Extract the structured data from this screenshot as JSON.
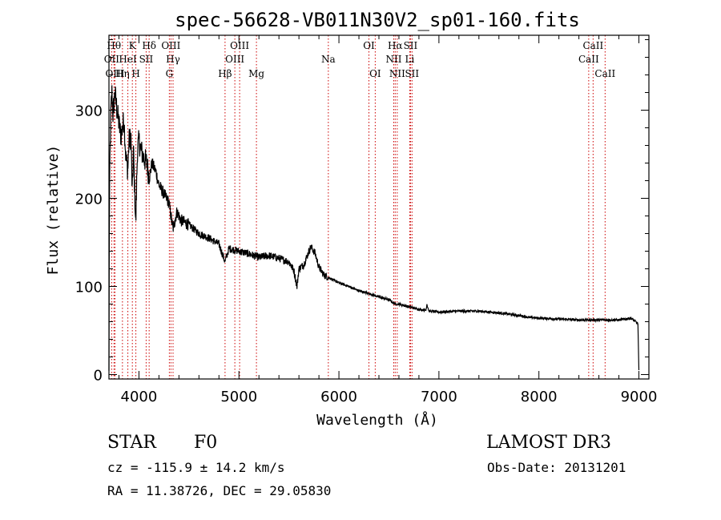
{
  "chart_data": {
    "type": "line",
    "title": "spec-56628-VB011N30V2_sp01-160.fits",
    "xlabel": "Wavelength (Å)",
    "ylabel": "Flux (relative)",
    "xlim": [
      3700,
      9100
    ],
    "ylim": [
      -5,
      385
    ],
    "xticks": [
      4000,
      5000,
      6000,
      7000,
      8000,
      9000
    ],
    "yticks": [
      0,
      100,
      200,
      300
    ],
    "anchors": [
      [
        3700,
        0
      ],
      [
        3703,
        150
      ],
      [
        3710,
        245
      ],
      [
        3720,
        300
      ],
      [
        3730,
        320
      ],
      [
        3740,
        295
      ],
      [
        3760,
        320
      ],
      [
        3780,
        300
      ],
      [
        3800,
        285
      ],
      [
        3820,
        270
      ],
      [
        3850,
        290
      ],
      [
        3870,
        245
      ],
      [
        3889,
        232
      ],
      [
        3900,
        265
      ],
      [
        3920,
        270
      ],
      [
        3933,
        205
      ],
      [
        3945,
        255
      ],
      [
        3968,
        170
      ],
      [
        3985,
        255
      ],
      [
        4000,
        265
      ],
      [
        4020,
        255
      ],
      [
        4050,
        245
      ],
      [
        4080,
        240
      ],
      [
        4102,
        222
      ],
      [
        4130,
        240
      ],
      [
        4170,
        230
      ],
      [
        4200,
        215
      ],
      [
        4250,
        205
      ],
      [
        4300,
        195
      ],
      [
        4340,
        165
      ],
      [
        4380,
        185
      ],
      [
        4420,
        175
      ],
      [
        4500,
        170
      ],
      [
        4600,
        160
      ],
      [
        4700,
        155
      ],
      [
        4800,
        148
      ],
      [
        4861,
        128
      ],
      [
        4900,
        143
      ],
      [
        5000,
        140
      ],
      [
        5100,
        137
      ],
      [
        5200,
        133
      ],
      [
        5300,
        135
      ],
      [
        5400,
        132
      ],
      [
        5500,
        128
      ],
      [
        5550,
        118
      ],
      [
        5580,
        100
      ],
      [
        5600,
        120
      ],
      [
        5650,
        125
      ],
      [
        5700,
        140
      ],
      [
        5720,
        145
      ],
      [
        5760,
        138
      ],
      [
        5800,
        122
      ],
      [
        5850,
        113
      ],
      [
        5900,
        110
      ],
      [
        6000,
        104
      ],
      [
        6100,
        100
      ],
      [
        6200,
        95
      ],
      [
        6300,
        92
      ],
      [
        6400,
        88
      ],
      [
        6500,
        85
      ],
      [
        6563,
        80
      ],
      [
        6600,
        80
      ],
      [
        6700,
        77
      ],
      [
        6800,
        74
      ],
      [
        6870,
        73
      ],
      [
        6880,
        80
      ],
      [
        6900,
        72
      ],
      [
        7000,
        71
      ],
      [
        7200,
        72
      ],
      [
        7400,
        72
      ],
      [
        7600,
        70
      ],
      [
        7800,
        67
      ],
      [
        7900,
        65
      ],
      [
        8000,
        64
      ],
      [
        8200,
        63
      ],
      [
        8400,
        62
      ],
      [
        8600,
        62
      ],
      [
        8800,
        62
      ],
      [
        8920,
        64
      ],
      [
        8990,
        58
      ],
      [
        9000,
        5
      ]
    ],
    "noise_level": 8,
    "spectral_lines": [
      {
        "label": "OII",
        "wavelength": 3727,
        "row": 2
      },
      {
        "label": "Hθ",
        "wavelength": 3750,
        "row": 1
      },
      {
        "label": "OIII",
        "wavelength": 3760,
        "row": 3
      },
      {
        "label": "Hη",
        "wavelength": 3835,
        "row": 3
      },
      {
        "label": "HeI",
        "wavelength": 3889,
        "row": 2
      },
      {
        "label": "K",
        "wavelength": 3934,
        "row": 1
      },
      {
        "label": "H",
        "wavelength": 3969,
        "row": 3
      },
      {
        "label": "SII",
        "wavelength": 4072,
        "row": 2
      },
      {
        "label": "Hδ",
        "wavelength": 4102,
        "row": 1
      },
      {
        "label": "OIII",
        "wavelength": 4320,
        "row": 1
      },
      {
        "label": "G",
        "wavelength": 4304,
        "row": 3
      },
      {
        "label": "Hγ",
        "wavelength": 4341,
        "row": 2
      },
      {
        "label": "Hβ",
        "wavelength": 4861,
        "row": 3
      },
      {
        "label": "OIII",
        "wavelength": 4959,
        "row": 2
      },
      {
        "label": "OIII",
        "wavelength": 5007,
        "row": 1
      },
      {
        "label": "Mg",
        "wavelength": 5175,
        "row": 3
      },
      {
        "label": "Na",
        "wavelength": 5894,
        "row": 2
      },
      {
        "label": "OI",
        "wavelength": 6300,
        "row": 1
      },
      {
        "label": "OI",
        "wavelength": 6363,
        "row": 3
      },
      {
        "label": "NII",
        "wavelength": 6548,
        "row": 2
      },
      {
        "label": "Hα",
        "wavelength": 6563,
        "row": 1
      },
      {
        "label": "NII",
        "wavelength": 6583,
        "row": 3
      },
      {
        "label": "SII",
        "wavelength": 6716,
        "row": 1
      },
      {
        "label": "Li",
        "wavelength": 6708,
        "row": 2
      },
      {
        "label": "SII",
        "wavelength": 6731,
        "row": 3
      },
      {
        "label": "CaII",
        "wavelength": 8498,
        "row": 2
      },
      {
        "label": "CaII",
        "wavelength": 8542,
        "row": 1
      },
      {
        "label": "CaII",
        "wavelength": 8662,
        "row": 3
      }
    ],
    "colors": {
      "spectrum": "#000000",
      "line_marker": "#cc0000",
      "axes": "#000000"
    }
  },
  "info": {
    "object_class": "STAR",
    "subclass": "F0",
    "survey": "LAMOST DR3",
    "redshift": "cz = -115.9 ± 14.2 km/s",
    "obs_date": "Obs-Date: 20131201",
    "coords": "RA =  11.38726, DEC =  29.05830"
  }
}
